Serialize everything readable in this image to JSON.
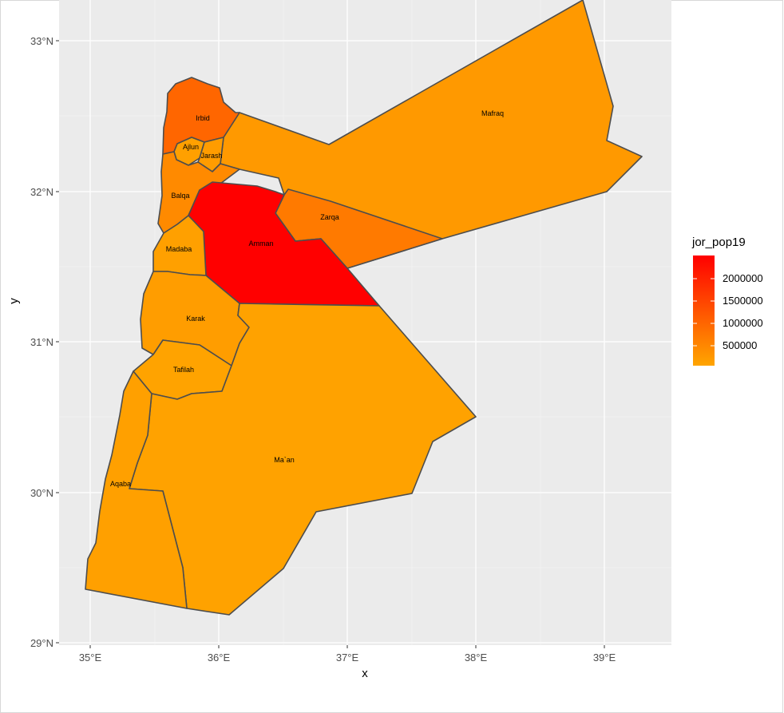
{
  "chart_data": {
    "type": "choropleth",
    "title": "",
    "xlabel": "x",
    "ylabel": "y",
    "xlim": [
      34.75,
      39.5
    ],
    "ylim": [
      28.97,
      33.25
    ],
    "x_ticks": [
      "35°E",
      "36°E",
      "37°E",
      "38°E",
      "39°E"
    ],
    "y_ticks": [
      "29°N",
      "30°N",
      "31°N",
      "32°N",
      "33°N"
    ],
    "grid": true,
    "legend": {
      "title": "jor_pop19",
      "placement": "right",
      "breaks": [
        "2000000",
        "1500000",
        "1000000",
        "500000"
      ],
      "low_color": "#ffa500",
      "high_color": "#ff0000"
    },
    "regions": [
      {
        "name": "Irbid",
        "fill": "#ff6600"
      },
      {
        "name": "Ajlun",
        "fill": "#ffa000"
      },
      {
        "name": "Jarash",
        "fill": "#ff9c00"
      },
      {
        "name": "Balqa",
        "fill": "#ff8a00"
      },
      {
        "name": "Mafraq",
        "fill": "#ff9900"
      },
      {
        "name": "Zarqa",
        "fill": "#ff7a00"
      },
      {
        "name": "Amman",
        "fill": "#ff0000"
      },
      {
        "name": "Madaba",
        "fill": "#ffa000"
      },
      {
        "name": "Karak",
        "fill": "#ff9d00"
      },
      {
        "name": "Tafilah",
        "fill": "#ffa300"
      },
      {
        "name": "Ma`an",
        "fill": "#ffa200"
      },
      {
        "name": "Aqaba",
        "fill": "#ffa000"
      }
    ]
  }
}
